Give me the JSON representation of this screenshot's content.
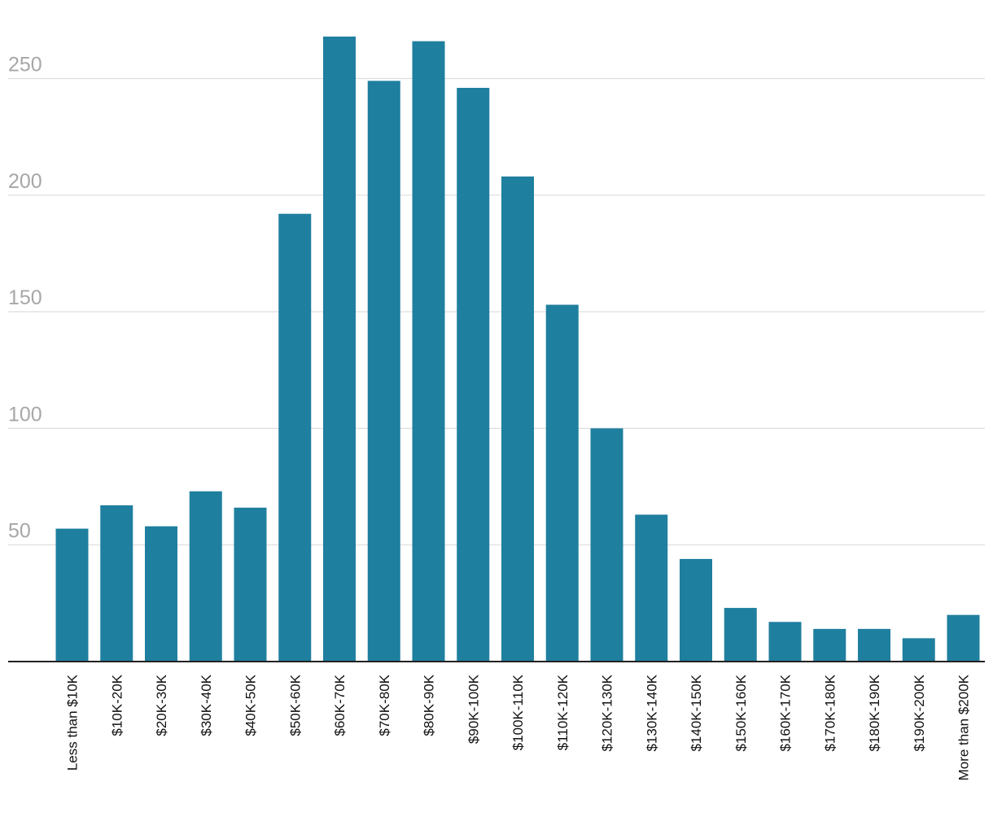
{
  "chart_data": {
    "type": "bar",
    "categories": [
      "Less than $10K",
      "$10K-20K",
      "$20K-30K",
      "$30K-40K",
      "$40K-50K",
      "$50K-60K",
      "$60K-70K",
      "$70K-80K",
      "$80K-90K",
      "$90K-100K",
      "$100K-110K",
      "$110K-120K",
      "$120K-130K",
      "$130K-140K",
      "$140K-150K",
      "$150K-160K",
      "$160K-170K",
      "$170K-180K",
      "$180K-190K",
      "$190K-200K",
      "More than $200K"
    ],
    "values": [
      57,
      67,
      58,
      73,
      66,
      192,
      268,
      249,
      266,
      246,
      208,
      153,
      100,
      63,
      44,
      23,
      17,
      14,
      14,
      10,
      20
    ],
    "yticks": [
      50,
      100,
      150,
      200,
      250
    ],
    "ylim": [
      0,
      270
    ],
    "grid": true,
    "title": "",
    "xlabel": "",
    "ylabel": "",
    "bar_color": "#1f7f9f"
  }
}
